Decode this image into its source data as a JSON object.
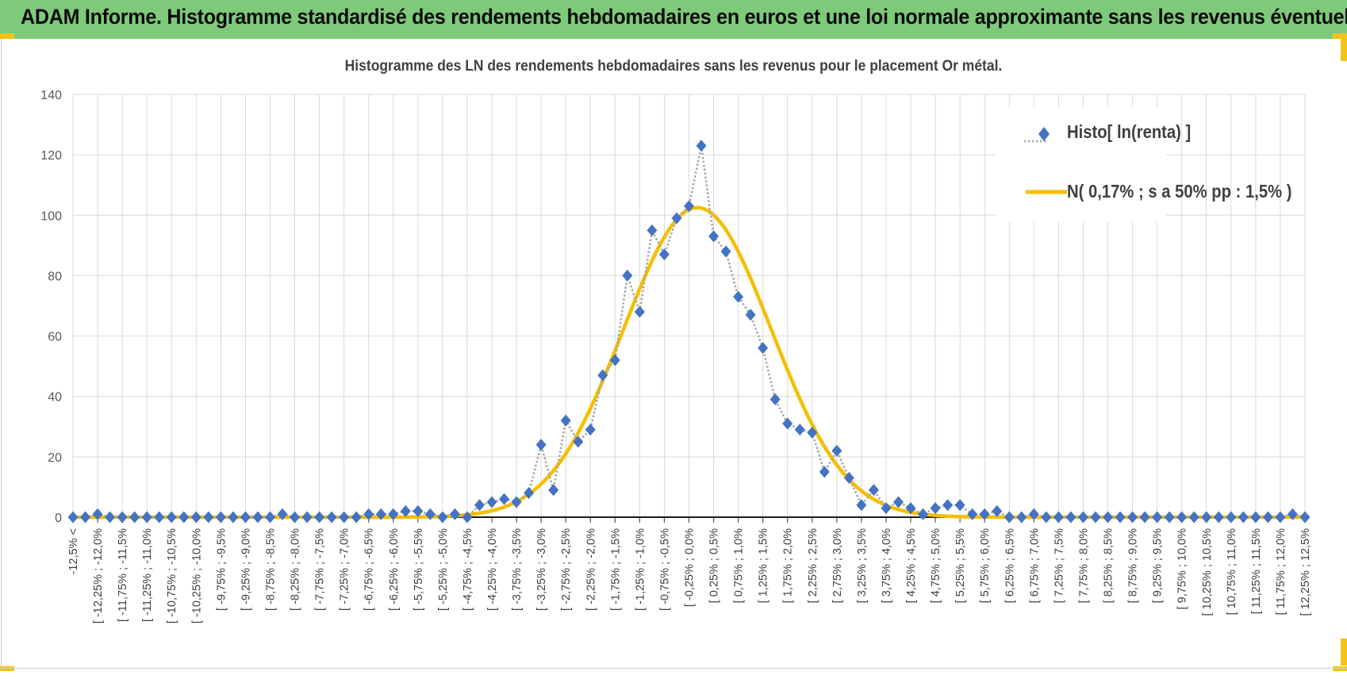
{
  "header": {
    "title": "ADAM Informe. Histogramme standardisé des rendements hebdomadaires en euros et une loi normale approximante sans les revenus éventuels"
  },
  "colors": {
    "banner": "#7fc97a",
    "accent": "#f0c419",
    "series_marker": "#4472c4",
    "normal_curve": "#f5be00"
  },
  "chart_data": {
    "type": "line",
    "title": "Histogramme des LN des rendements hebdomadaires sans les revenus pour le placement Or métal.",
    "xlabel": "",
    "ylabel": "",
    "ylim": [
      0,
      140
    ],
    "yticks": [
      0,
      20,
      40,
      60,
      80,
      100,
      120,
      140
    ],
    "grid": true,
    "legend_position": "top-right",
    "x_tick_labels": [
      "-12,5% <",
      "[ -12,25% ; -12,0%",
      "[ -11,75% ; -11,5%",
      "[ -11,25% ; -11,0%",
      "[ -10,75% ; -10,5%",
      "[ -10,25% ; -10,0%",
      "[ -9,75% ; -9,5%",
      "[ -9,25% ; -9,0%",
      "[ -8,75% ; -8,5%",
      "[ -8,25% ; -8,0%",
      "[ -7,75% ; -7,5%",
      "[ -7,25% ; -7,0%",
      "[ -6,75% ; -6,5%",
      "[ -6,25% ; -6,0%",
      "[ -5,75% ; -5,5%",
      "[ -5,25% ; -5,0%",
      "[ -4,75% ; -4,5%",
      "[ -4,25% ; -4,0%",
      "[ -3,75% ; -3,5%",
      "[ -3,25% ; -3,0%",
      "[ -2,75% ; -2,5%",
      "[ -2,25% ; -2,0%",
      "[ -1,75% ; -1,5%",
      "[ -1,25% ; -1,0%",
      "[ -0,75% ; -0,5%",
      "[ -0,25% ; 0,0%",
      "[ 0,25% ; 0,5%",
      "[ 0,75% ; 1,0%",
      "[ 1,25% ; 1,5%",
      "[ 1,75% ; 2,0%",
      "[ 2,25% ; 2,5%",
      "[ 2,75% ; 3,0%",
      "[ 3,25% ; 3,5%",
      "[ 3,75% ; 4,0%",
      "[ 4,25% ; 4,5%",
      "[ 4,75% ; 5,0%",
      "[ 5,25% ; 5,5%",
      "[ 5,75% ; 6,0%",
      "[ 6,25% ; 6,5%",
      "[ 6,75% ; 7,0%",
      "[ 7,25% ; 7,5%",
      "[ 7,75% ; 8,0%",
      "[ 8,25% ; 8,5%",
      "[ 8,75% ; 9,0%",
      "[ 9,25% ; 9,5%",
      "[ 9,75% ; 10,0%",
      "[ 10,25% ; 10,5%",
      "[ 10,75% ; 11,0%",
      "[ 11,25% ; 11,5%",
      "[ 11,75% ; 12,0%",
      "[ 12,25% ; 12,5%"
    ],
    "x_range": [
      -12.5,
      12.5
    ],
    "series": [
      {
        "name": "Histo[ ln(renta) ]",
        "style": "dotted-line-diamond",
        "x": [
          -12.5,
          -12.25,
          -12.0,
          -11.75,
          -11.5,
          -11.25,
          -11.0,
          -10.75,
          -10.5,
          -10.25,
          -10.0,
          -9.75,
          -9.5,
          -9.25,
          -9.0,
          -8.75,
          -8.5,
          -8.25,
          -8.0,
          -7.75,
          -7.5,
          -7.25,
          -7.0,
          -6.75,
          -6.5,
          -6.25,
          -6.0,
          -5.75,
          -5.5,
          -5.25,
          -5.0,
          -4.75,
          -4.5,
          -4.25,
          -4.0,
          -3.75,
          -3.5,
          -3.25,
          -3.0,
          -2.75,
          -2.5,
          -2.25,
          -2.0,
          -1.75,
          -1.5,
          -1.25,
          -1.0,
          -0.75,
          -0.5,
          -0.25,
          0.0,
          0.25,
          0.5,
          0.75,
          1.0,
          1.25,
          1.5,
          1.75,
          2.0,
          2.25,
          2.5,
          2.75,
          3.0,
          3.25,
          3.5,
          3.75,
          4.0,
          4.25,
          4.5,
          4.75,
          5.0,
          5.25,
          5.5,
          5.75,
          6.0,
          6.25,
          6.5,
          6.75,
          7.0,
          7.25,
          7.5,
          7.75,
          8.0,
          8.25,
          8.5,
          8.75,
          9.0,
          9.25,
          9.5,
          9.75,
          10.0,
          10.25,
          10.5,
          10.75,
          11.0,
          11.25,
          11.5,
          11.75,
          12.0,
          12.25,
          12.5
        ],
        "values": [
          0,
          0,
          1,
          0,
          0,
          0,
          0,
          0,
          0,
          0,
          0,
          0,
          0,
          0,
          0,
          0,
          0,
          1,
          0,
          0,
          0,
          0,
          0,
          0,
          1,
          1,
          1,
          2,
          2,
          1,
          0,
          1,
          0,
          4,
          5,
          6,
          5,
          8,
          24,
          9,
          32,
          25,
          29,
          47,
          52,
          80,
          68,
          95,
          87,
          99,
          103,
          123,
          93,
          88,
          73,
          67,
          56,
          39,
          31,
          29,
          28,
          15,
          22,
          13,
          4,
          9,
          3,
          5,
          3,
          1,
          3,
          4,
          4,
          1,
          1,
          2,
          0,
          0,
          1,
          0,
          0,
          0,
          0,
          0,
          0,
          0,
          0,
          0,
          0,
          0,
          0,
          0,
          0,
          0,
          0,
          0,
          0,
          0,
          0,
          1,
          0
        ]
      },
      {
        "name": "N( 0,17% ; s a 50% pp : 1,5% )",
        "style": "solid-line",
        "mean": 0.17,
        "stdev": 1.5,
        "peak": 102.5
      }
    ]
  }
}
